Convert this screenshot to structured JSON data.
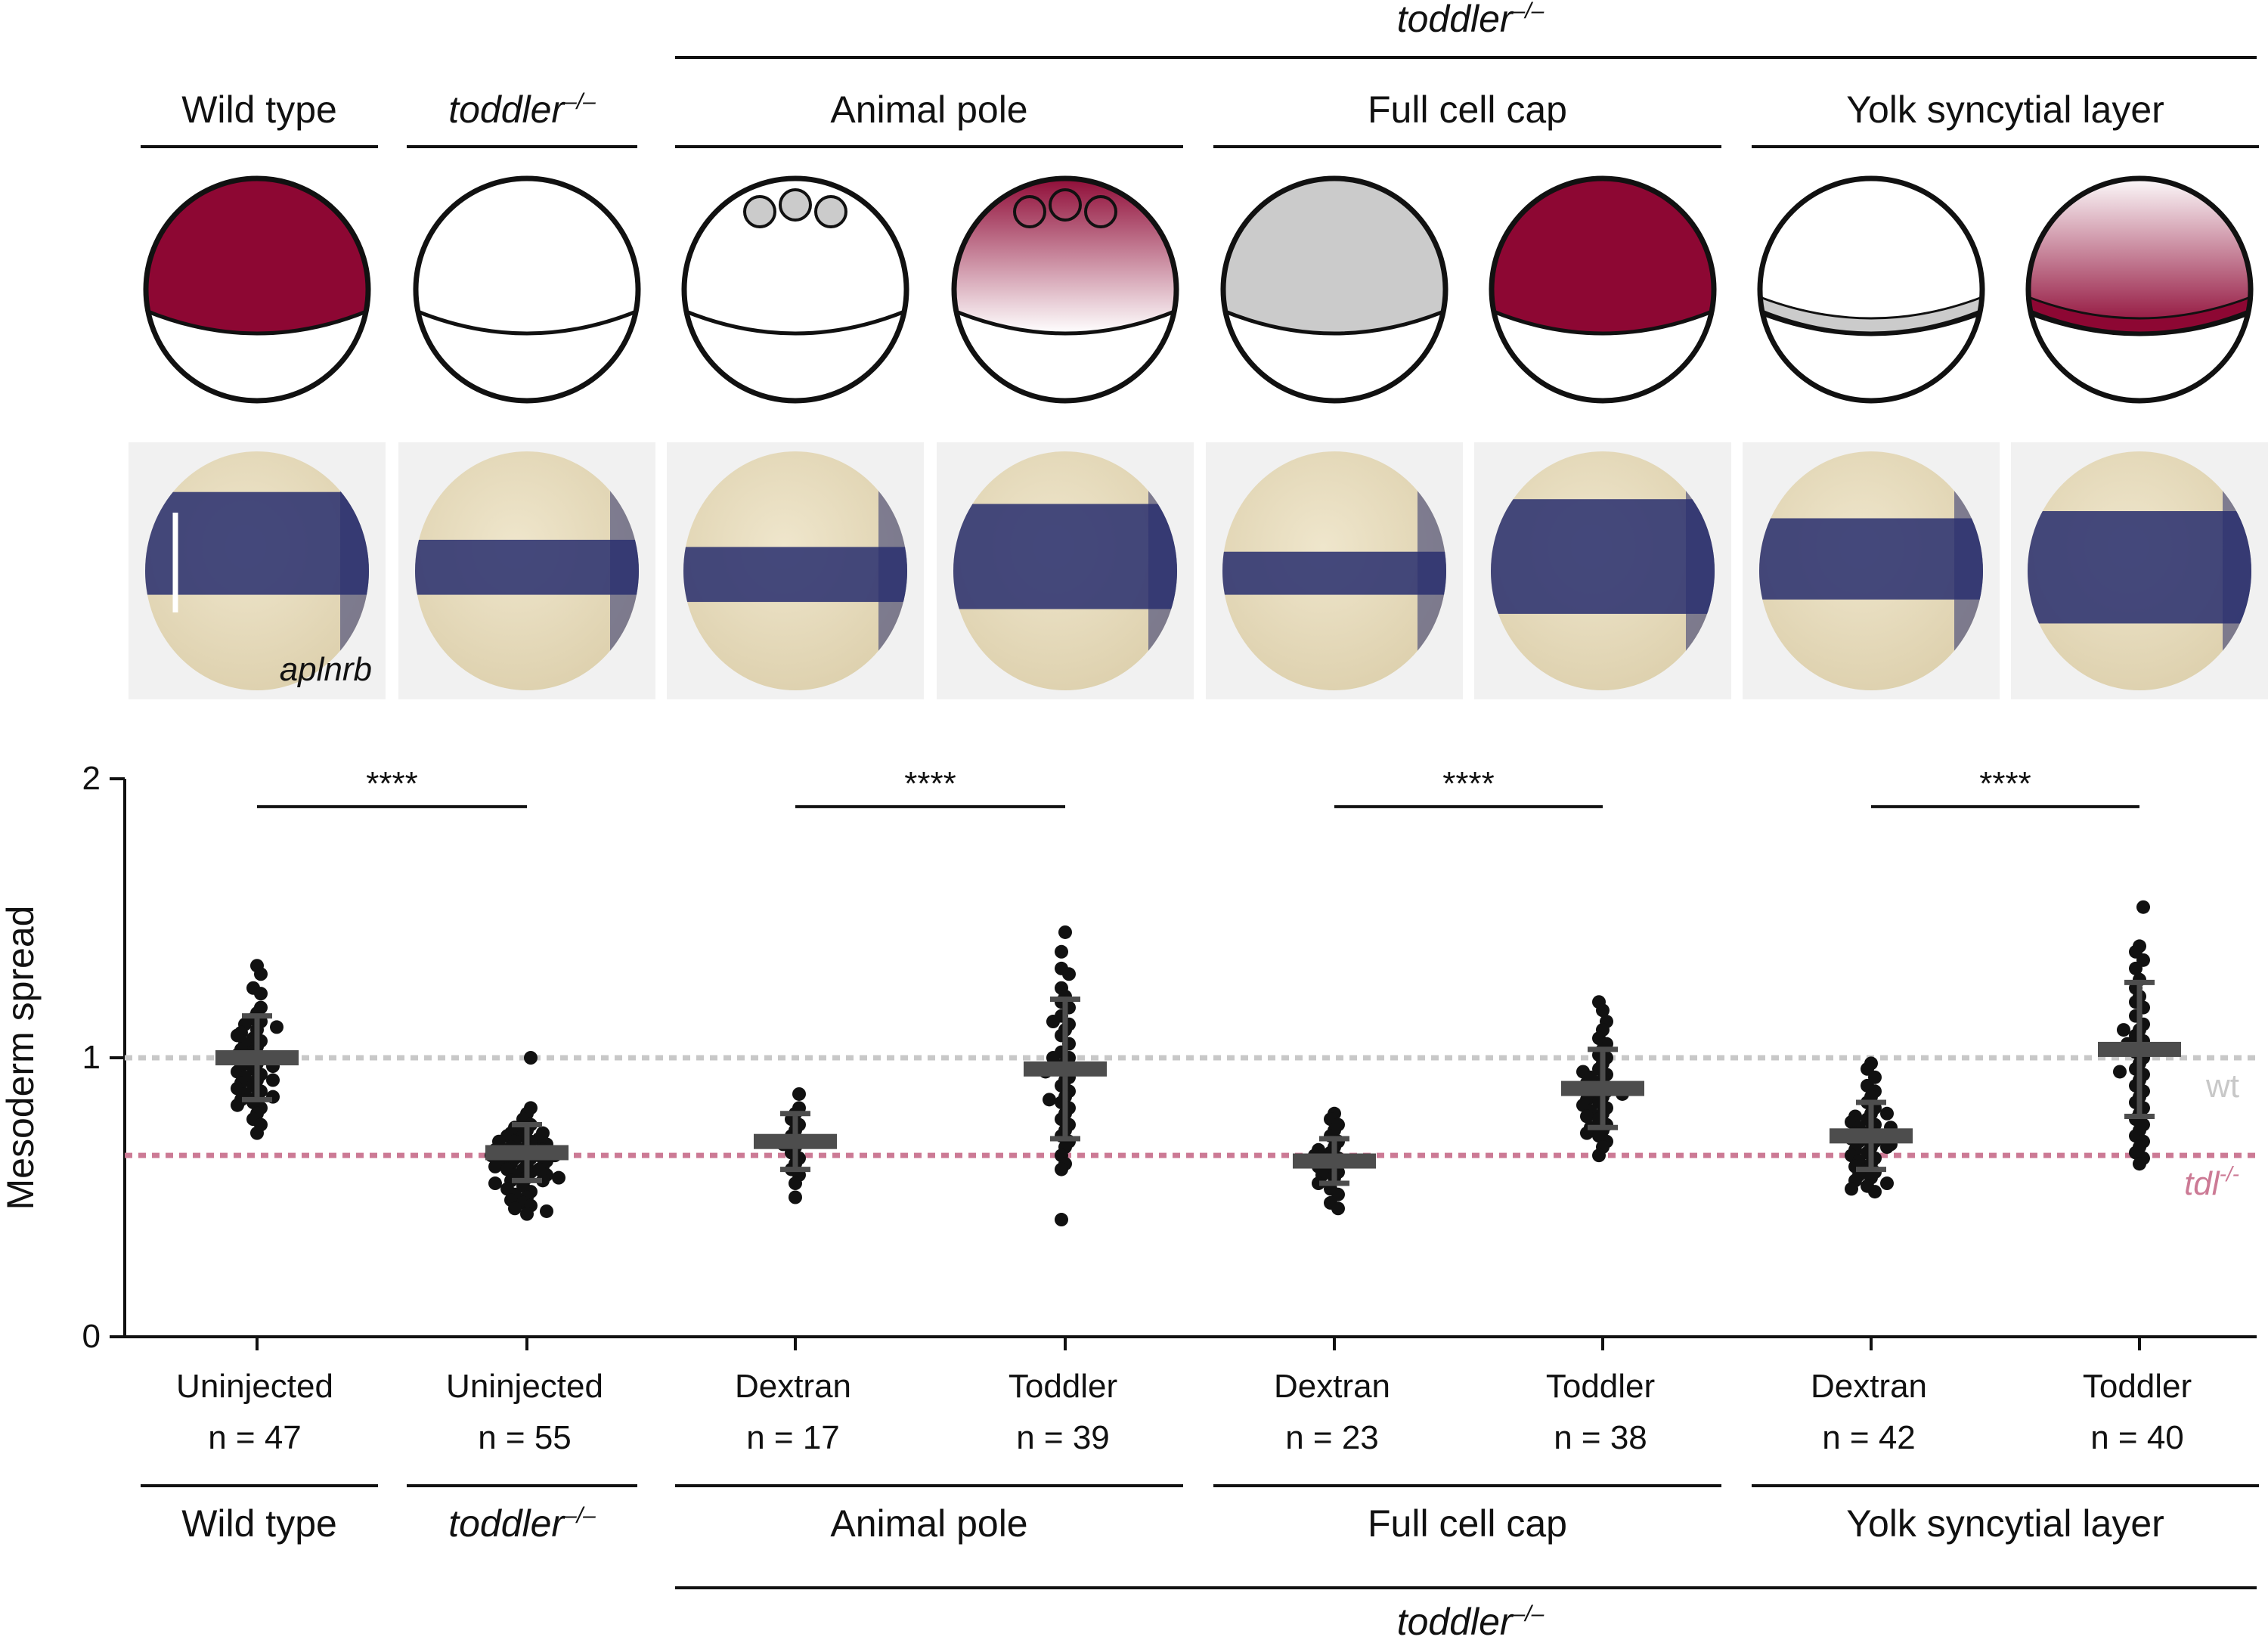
{
  "colors": {
    "accent": "#8d0733",
    "gray_fill": "#cbcbcb",
    "stain": "#2c3270",
    "wt_line": "#c8c8c8",
    "tdl_line": "#cc7a95",
    "summary": "#4d4d4d"
  },
  "header": {
    "top_label": "toddler",
    "top_sup": "–/–",
    "groups": [
      {
        "label": "Wild type",
        "italic": false,
        "sup": ""
      },
      {
        "label": "toddler",
        "italic": true,
        "sup": "–/–"
      },
      {
        "label": "Animal pole",
        "italic": false,
        "sup": ""
      },
      {
        "label": "Full cell cap",
        "italic": false,
        "sup": ""
      },
      {
        "label": "Yolk syncytial layer",
        "italic": false,
        "sup": ""
      }
    ]
  },
  "schematics": [
    {
      "cap": "accent",
      "band": "none",
      "cells": "none"
    },
    {
      "cap": "white",
      "band": "none",
      "cells": "none"
    },
    {
      "cap": "white",
      "band": "none",
      "cells": "gray"
    },
    {
      "cap": "gradient_down",
      "band": "none",
      "cells": "outline"
    },
    {
      "cap": "gray",
      "band": "none",
      "cells": "none"
    },
    {
      "cap": "accent",
      "band": "none",
      "cells": "none"
    },
    {
      "cap": "white",
      "band": "gray",
      "cells": "none"
    },
    {
      "cap": "gradient_up",
      "band": "accent",
      "cells": "none"
    }
  ],
  "photo_label": "aplnrb",
  "chart_data": {
    "type": "scatter",
    "ylabel": "Mesoderm spread",
    "ylim": [
      0,
      2
    ],
    "yticks": [
      0,
      1,
      2
    ],
    "reference_lines": [
      {
        "label": "wt",
        "sup": "",
        "value": 1.0,
        "color": "#c8c8c8"
      },
      {
        "label": "tdl",
        "sup": "-/-",
        "value": 0.65,
        "color": "#cc7a95"
      }
    ],
    "significance": [
      "****",
      "****",
      "****",
      "****"
    ],
    "categories": [
      {
        "name": "Uninjected",
        "n": "n = 47",
        "mean": 1.0,
        "sd": 0.15
      },
      {
        "name": "Uninjected",
        "n": "n = 55",
        "mean": 0.66,
        "sd": 0.1
      },
      {
        "name": "Dextran",
        "n": "n = 17",
        "mean": 0.7,
        "sd": 0.1
      },
      {
        "name": "Toddler",
        "n": "n = 39",
        "mean": 0.96,
        "sd": 0.25
      },
      {
        "name": "Dextran",
        "n": "n = 23",
        "mean": 0.63,
        "sd": 0.08
      },
      {
        "name": "Toddler",
        "n": "n = 38",
        "mean": 0.89,
        "sd": 0.14
      },
      {
        "name": "Dextran",
        "n": "n = 42",
        "mean": 0.72,
        "sd": 0.12
      },
      {
        "name": "Toddler",
        "n": "n = 40",
        "mean": 1.03,
        "sd": 0.24
      }
    ],
    "points": [
      [
        1.33,
        1.3,
        1.25,
        1.23,
        1.18,
        1.16,
        1.14,
        1.13,
        1.12,
        1.1,
        1.09,
        1.07,
        1.06,
        1.05,
        1.04,
        1.03,
        1.02,
        1.01,
        1.0,
        0.99,
        0.98,
        0.97,
        0.96,
        0.95,
        0.94,
        0.93,
        0.92,
        0.91,
        0.9,
        0.89,
        0.88,
        0.87,
        0.86,
        0.85,
        0.84,
        0.83,
        0.82,
        0.8,
        0.78,
        0.76,
        0.73,
        1.08,
        0.97,
        0.92,
        1.11,
        0.86,
        1.0
      ],
      [
        1.0,
        0.82,
        0.8,
        0.78,
        0.76,
        0.75,
        0.74,
        0.73,
        0.72,
        0.72,
        0.71,
        0.7,
        0.7,
        0.69,
        0.68,
        0.68,
        0.67,
        0.67,
        0.66,
        0.66,
        0.65,
        0.65,
        0.64,
        0.64,
        0.63,
        0.63,
        0.62,
        0.62,
        0.61,
        0.61,
        0.6,
        0.6,
        0.59,
        0.58,
        0.58,
        0.57,
        0.56,
        0.56,
        0.55,
        0.54,
        0.53,
        0.52,
        0.51,
        0.5,
        0.49,
        0.48,
        0.47,
        0.46,
        0.45,
        0.44,
        0.7,
        0.65,
        0.6,
        0.73,
        0.57
      ],
      [
        0.87,
        0.82,
        0.8,
        0.78,
        0.76,
        0.74,
        0.72,
        0.7,
        0.69,
        0.68,
        0.66,
        0.64,
        0.62,
        0.6,
        0.58,
        0.55,
        0.5
      ],
      [
        1.45,
        1.38,
        1.32,
        1.3,
        1.25,
        1.22,
        1.2,
        1.18,
        1.15,
        1.12,
        1.1,
        1.08,
        1.05,
        1.02,
        1.0,
        0.98,
        0.96,
        0.95,
        0.93,
        0.9,
        0.88,
        0.86,
        0.84,
        0.82,
        0.8,
        0.78,
        0.76,
        0.74,
        0.72,
        0.7,
        0.68,
        0.65,
        0.62,
        0.6,
        0.42,
        1.13,
        0.92,
        0.85,
        1.0
      ],
      [
        0.8,
        0.78,
        0.76,
        0.74,
        0.72,
        0.7,
        0.68,
        0.67,
        0.66,
        0.65,
        0.64,
        0.63,
        0.62,
        0.61,
        0.6,
        0.59,
        0.58,
        0.57,
        0.55,
        0.53,
        0.51,
        0.48,
        0.46
      ],
      [
        1.2,
        1.17,
        1.13,
        1.1,
        1.07,
        1.05,
        1.03,
        1.01,
        1.0,
        0.98,
        0.96,
        0.95,
        0.94,
        0.92,
        0.91,
        0.9,
        0.89,
        0.88,
        0.87,
        0.86,
        0.85,
        0.84,
        0.83,
        0.82,
        0.81,
        0.8,
        0.79,
        0.78,
        0.76,
        0.75,
        0.74,
        0.73,
        0.72,
        0.7,
        0.68,
        0.65,
        0.93,
        0.87
      ],
      [
        0.98,
        0.96,
        0.93,
        0.9,
        0.88,
        0.86,
        0.84,
        0.82,
        0.8,
        0.79,
        0.78,
        0.77,
        0.76,
        0.75,
        0.74,
        0.73,
        0.72,
        0.71,
        0.7,
        0.7,
        0.69,
        0.68,
        0.67,
        0.66,
        0.65,
        0.64,
        0.63,
        0.62,
        0.61,
        0.6,
        0.59,
        0.58,
        0.57,
        0.56,
        0.55,
        0.54,
        0.53,
        0.52,
        0.75,
        0.72,
        0.68,
        0.8
      ],
      [
        1.54,
        1.4,
        1.38,
        1.35,
        1.32,
        1.28,
        1.25,
        1.22,
        1.2,
        1.18,
        1.15,
        1.12,
        1.1,
        1.08,
        1.06,
        1.04,
        1.02,
        1.0,
        0.98,
        0.96,
        0.94,
        0.92,
        0.9,
        0.88,
        0.86,
        0.84,
        0.82,
        0.8,
        0.78,
        0.76,
        0.74,
        0.72,
        0.7,
        0.68,
        0.66,
        0.64,
        0.62,
        1.05,
        0.95,
        1.1
      ]
    ],
    "bottom_groups": [
      {
        "label": "Wild type",
        "italic": false,
        "sup": ""
      },
      {
        "label": "toddler",
        "italic": true,
        "sup": "–/–"
      },
      {
        "label": "Animal pole",
        "italic": false,
        "sup": ""
      },
      {
        "label": "Full cell cap",
        "italic": false,
        "sup": ""
      },
      {
        "label": "Yolk syncytial layer",
        "italic": false,
        "sup": ""
      }
    ],
    "bottom_label": "toddler",
    "bottom_sup": "–/–"
  }
}
